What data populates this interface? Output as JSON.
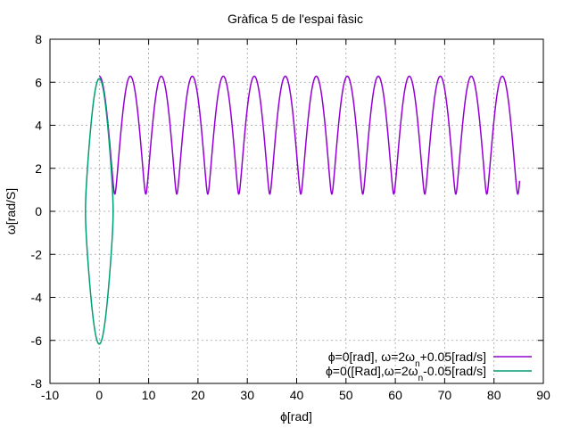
{
  "chart_data": {
    "type": "line",
    "title": "Gràfica 5 de l'espai fàsic",
    "xlabel": "ϕ[rad]",
    "ylabel": "ω[rad/S]",
    "xlim": [
      -10,
      90
    ],
    "ylim": [
      -8,
      8
    ],
    "xticks": [
      -10,
      0,
      10,
      20,
      30,
      40,
      50,
      60,
      70,
      80,
      90
    ],
    "yticks": [
      -8,
      -6,
      -4,
      -2,
      0,
      2,
      4,
      6,
      8
    ],
    "grid": true,
    "legend_position": "bottom-right",
    "series": [
      {
        "legend_parts": [
          "ϕ=0[rad], ω=2ω",
          "n",
          "+0.05[rad/s]"
        ],
        "color": "#9400d3",
        "shape": "rotating pendulum: omega = sqrt(1 + 0.05^2... ) form, min 0.80 at phi=pi(2k+1), max 6.28 at phi=2pi k",
        "phi_range": [
          0,
          85.2
        ],
        "omega_at_phi_0": 6.28,
        "omega_min": 0.8
      },
      {
        "legend_parts": [
          "ϕ=0([Rad],ω=2ω",
          "n",
          "-0.05[rad/s]"
        ],
        "color": "#009e73",
        "shape": "closed libration orbit",
        "phi_range": [
          -2.8,
          2.8
        ],
        "omega_range": [
          -6.17,
          6.17
        ]
      }
    ]
  }
}
